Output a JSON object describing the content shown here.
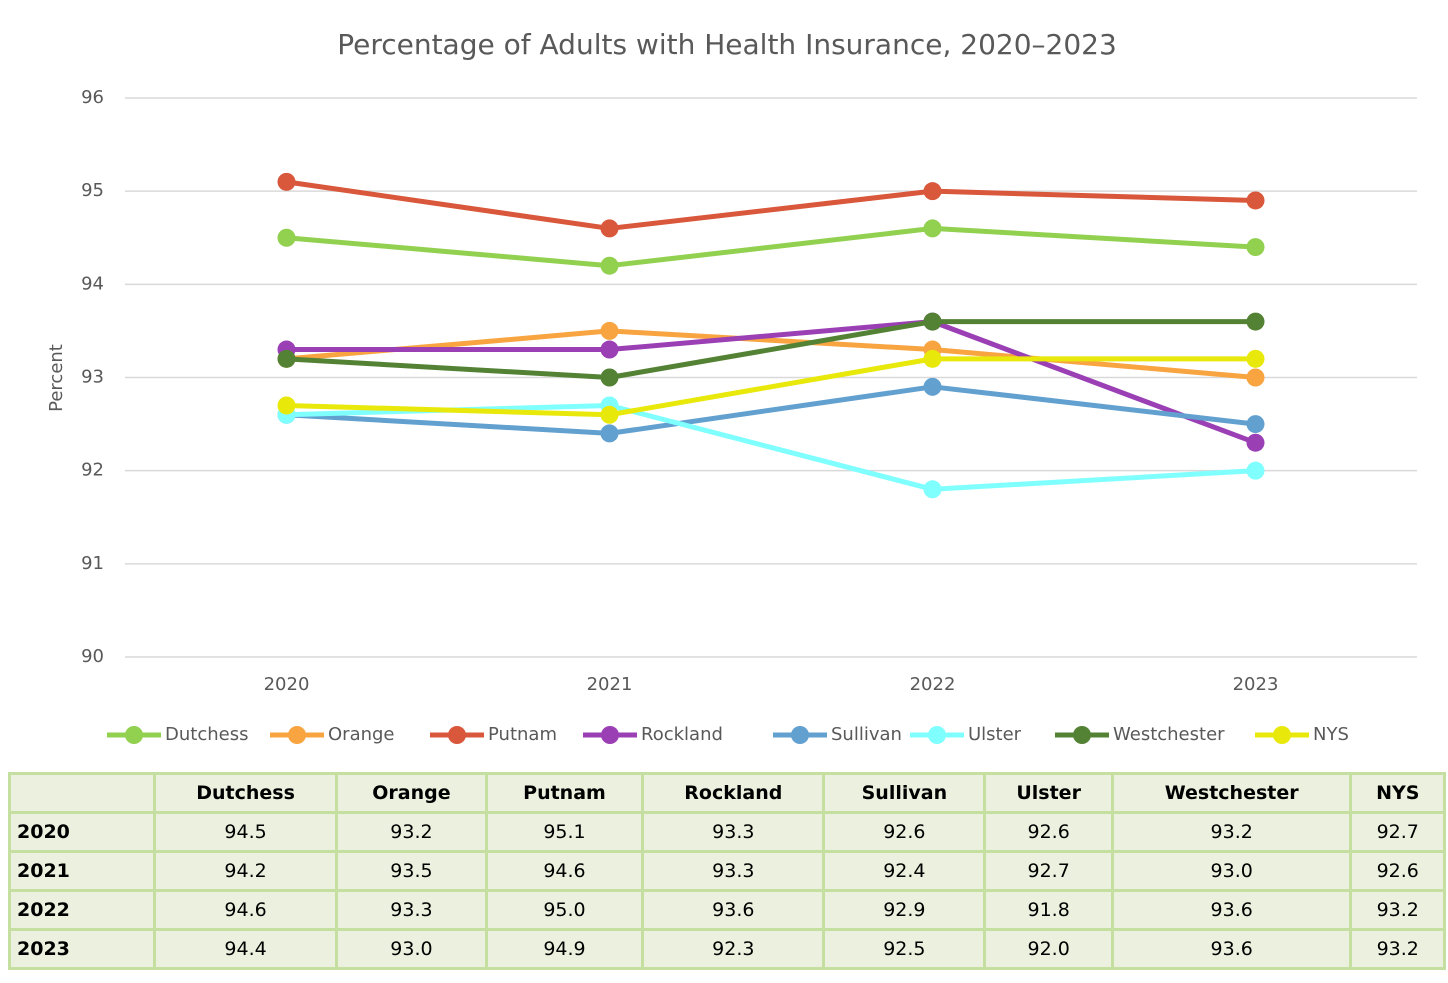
{
  "chart_data": {
    "type": "line",
    "title": "Percentage of Adults with Health Insurance, 2020–2023",
    "y_label": "Percent",
    "categories": [
      "2020",
      "2021",
      "2022",
      "2023"
    ],
    "series": [
      {
        "name": "Dutchess",
        "color": "#92d050",
        "values": [
          94.5,
          94.2,
          94.6,
          94.4
        ]
      },
      {
        "name": "Orange",
        "color": "#f8a440",
        "values": [
          93.2,
          93.5,
          93.3,
          93.0
        ]
      },
      {
        "name": "Putnam",
        "color": "#d9573b",
        "values": [
          95.1,
          94.6,
          95.0,
          94.9
        ]
      },
      {
        "name": "Rockland",
        "color": "#9b3fb5",
        "values": [
          93.3,
          93.3,
          93.6,
          92.3
        ]
      },
      {
        "name": "Sullivan",
        "color": "#62a0d0",
        "values": [
          92.6,
          92.4,
          92.9,
          92.5
        ]
      },
      {
        "name": "Ulster",
        "color": "#80ffff",
        "values": [
          92.6,
          92.7,
          91.8,
          92.0
        ]
      },
      {
        "name": "Westchester",
        "color": "#548235",
        "values": [
          93.2,
          93.0,
          93.6,
          93.6
        ]
      },
      {
        "name": "NYS",
        "color": "#e8e80a",
        "values": [
          92.7,
          92.6,
          93.2,
          93.2
        ]
      }
    ],
    "ylim": [
      90,
      96
    ],
    "yticks": [
      90,
      91,
      92,
      93,
      94,
      95,
      96
    ],
    "grid": true,
    "legend": "bottom"
  },
  "table": {
    "columns": [
      "Dutchess",
      "Orange",
      "Putnam",
      "Rockland",
      "Sullivan",
      "Ulster",
      "Westchester",
      "NYS"
    ],
    "rows": [
      {
        "label": "2020",
        "cells": [
          "94.5",
          "93.2",
          "95.1",
          "93.3",
          "92.6",
          "92.6",
          "93.2",
          "92.7"
        ]
      },
      {
        "label": "2021",
        "cells": [
          "94.2",
          "93.5",
          "94.6",
          "93.3",
          "92.4",
          "92.7",
          "93.0",
          "92.6"
        ]
      },
      {
        "label": "2022",
        "cells": [
          "94.6",
          "93.3",
          "95.0",
          "93.6",
          "92.9",
          "91.8",
          "93.6",
          "93.2"
        ]
      },
      {
        "label": "2023",
        "cells": [
          "94.4",
          "93.0",
          "94.9",
          "92.3",
          "92.5",
          "92.0",
          "93.6",
          "93.2"
        ]
      }
    ]
  }
}
